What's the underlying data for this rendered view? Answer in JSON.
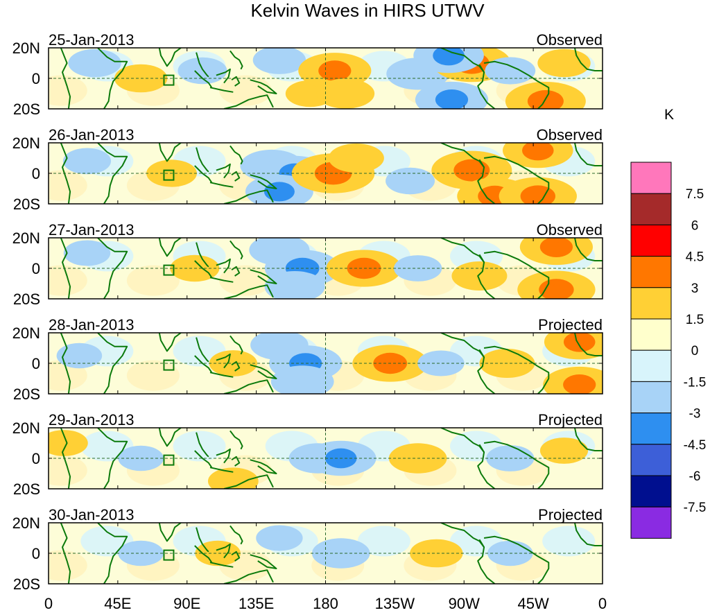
{
  "chart_data": {
    "type": "heatmap",
    "title": "Kelvin Waves in HIRS UTWV",
    "units": "K",
    "x_tick_labels": [
      "0",
      "45E",
      "90E",
      "135E",
      "180",
      "135W",
      "90W",
      "45W",
      "0"
    ],
    "x_ticks_deg": [
      0,
      45,
      90,
      135,
      180,
      225,
      270,
      315,
      360
    ],
    "lat_range": [
      -20,
      20
    ],
    "y_tick_labels": [
      "20N",
      "0",
      "20S"
    ],
    "colorbar": {
      "levels": [
        "7.5",
        "6",
        "4.5",
        "3",
        "1.5",
        "0",
        "-1.5",
        "-3",
        "-4.5",
        "-6",
        "-7.5"
      ],
      "colors": [
        "#ff77bb",
        "#a52a2a",
        "#ff0000",
        "#ff7700",
        "#ffd035",
        "#ffffcc",
        "#d8f4fb",
        "#a8d3f7",
        "#2e8ff0",
        "#3d5fd8",
        "#000f8f",
        "#8a2be2"
      ]
    },
    "panels": [
      {
        "date": "25-Jan-2013",
        "status": "Observed",
        "anomalies": [
          {
            "lon": 30,
            "lat": 10,
            "v": -1.8
          },
          {
            "lon": 60,
            "lat": 0,
            "v": 1.8
          },
          {
            "lon": 100,
            "lat": 5,
            "v": -1.5
          },
          {
            "lon": 150,
            "lat": 12,
            "v": -1.8
          },
          {
            "lon": 170,
            "lat": -10,
            "v": 1.5
          },
          {
            "lon": 186,
            "lat": 5,
            "v": 3.4
          },
          {
            "lon": 193,
            "lat": -10,
            "v": 2.2
          },
          {
            "lon": 240,
            "lat": 3,
            "v": -2.6
          },
          {
            "lon": 262,
            "lat": -14,
            "v": -3.4
          },
          {
            "lon": 275,
            "lat": 10,
            "v": 3.8
          },
          {
            "lon": 260,
            "lat": 15,
            "v": -3.2
          },
          {
            "lon": 300,
            "lat": 5,
            "v": -1.6
          },
          {
            "lon": 323,
            "lat": -15,
            "v": 4.0
          },
          {
            "lon": 335,
            "lat": 10,
            "v": 1.8
          }
        ]
      },
      {
        "date": "26-Jan-2013",
        "status": "Observed",
        "anomalies": [
          {
            "lon": 25,
            "lat": 8,
            "v": -1.4
          },
          {
            "lon": 80,
            "lat": 0,
            "v": 1.6
          },
          {
            "lon": 145,
            "lat": 5,
            "v": -2.6
          },
          {
            "lon": 160,
            "lat": 0,
            "v": -3.2
          },
          {
            "lon": 150,
            "lat": -12,
            "v": -3.0
          },
          {
            "lon": 185,
            "lat": 0,
            "v": 4.2
          },
          {
            "lon": 200,
            "lat": 10,
            "v": 2.0
          },
          {
            "lon": 235,
            "lat": -5,
            "v": -1.5
          },
          {
            "lon": 275,
            "lat": 2,
            "v": 4.0
          },
          {
            "lon": 290,
            "lat": -15,
            "v": 3.6
          },
          {
            "lon": 318,
            "lat": 15,
            "v": 3.2
          },
          {
            "lon": 318,
            "lat": -15,
            "v": 3.8
          }
        ]
      },
      {
        "date": "27-Jan-2013",
        "status": "Observed",
        "anomalies": [
          {
            "lon": 25,
            "lat": 10,
            "v": -1.3
          },
          {
            "lon": 95,
            "lat": 0,
            "v": 1.5
          },
          {
            "lon": 150,
            "lat": 12,
            "v": -2.4
          },
          {
            "lon": 165,
            "lat": 0,
            "v": -3.6
          },
          {
            "lon": 160,
            "lat": -12,
            "v": -2.4
          },
          {
            "lon": 205,
            "lat": 0,
            "v": 3.6
          },
          {
            "lon": 240,
            "lat": 0,
            "v": -1.4
          },
          {
            "lon": 280,
            "lat": -5,
            "v": 2.0
          },
          {
            "lon": 330,
            "lat": 14,
            "v": 3.4
          },
          {
            "lon": 330,
            "lat": -14,
            "v": 3.8
          }
        ]
      },
      {
        "date": "28-Jan-2013",
        "status": "Projected",
        "anomalies": [
          {
            "lon": 20,
            "lat": 5,
            "v": -1.2
          },
          {
            "lon": 120,
            "lat": 0,
            "v": 1.4
          },
          {
            "lon": 150,
            "lat": 12,
            "v": -2.2
          },
          {
            "lon": 167,
            "lat": 0,
            "v": -3.4
          },
          {
            "lon": 165,
            "lat": -12,
            "v": -2.6
          },
          {
            "lon": 222,
            "lat": 0,
            "v": 3.6
          },
          {
            "lon": 255,
            "lat": 0,
            "v": -1.3
          },
          {
            "lon": 298,
            "lat": 0,
            "v": 2.0
          },
          {
            "lon": 345,
            "lat": 14,
            "v": 3.2
          },
          {
            "lon": 345,
            "lat": -14,
            "v": 3.4
          }
        ]
      },
      {
        "date": "29-Jan-2013",
        "status": "Projected",
        "anomalies": [
          {
            "lon": 10,
            "lat": 10,
            "v": 1.4
          },
          {
            "lon": 60,
            "lat": 0,
            "v": -1.2
          },
          {
            "lon": 175,
            "lat": 0,
            "v": -2.2
          },
          {
            "lon": 190,
            "lat": 0,
            "v": -3.2
          },
          {
            "lon": 240,
            "lat": 0,
            "v": 2.2
          },
          {
            "lon": 300,
            "lat": 0,
            "v": -1.4
          },
          {
            "lon": 120,
            "lat": -15,
            "v": 1.6
          },
          {
            "lon": 335,
            "lat": 5,
            "v": 1.4
          }
        ]
      },
      {
        "date": "30-Jan-2013",
        "status": "Projected",
        "anomalies": [
          {
            "lon": 60,
            "lat": 0,
            "v": -1.2
          },
          {
            "lon": 110,
            "lat": 0,
            "v": 1.2
          },
          {
            "lon": 190,
            "lat": 0,
            "v": -2.2
          },
          {
            "lon": 252,
            "lat": 0,
            "v": 1.8
          },
          {
            "lon": 300,
            "lat": 0,
            "v": -1.2
          },
          {
            "lon": 150,
            "lat": 10,
            "v": -1.3
          }
        ]
      }
    ]
  }
}
